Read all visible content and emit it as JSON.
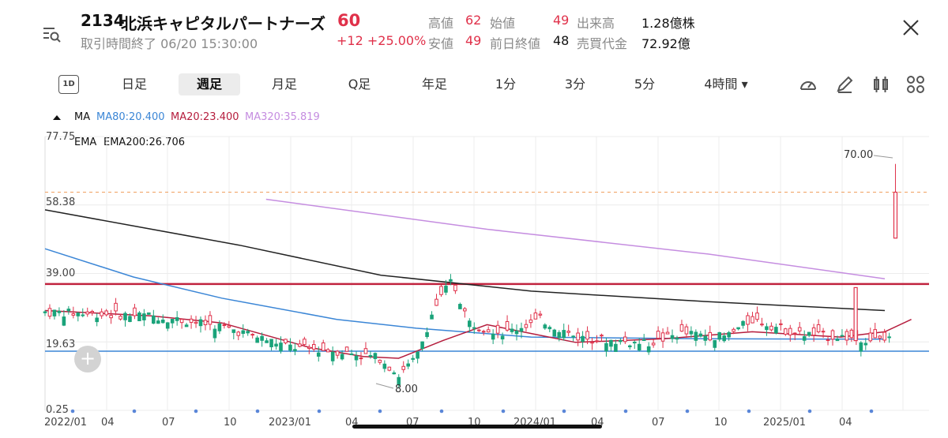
{
  "header": {
    "code": "2134",
    "name": "北浜キャピタルパートナーズ",
    "price": "60",
    "status": "取引時間終了 06/20 15:30:00",
    "change": "+12 +25.00%",
    "stats": [
      {
        "label": "高値",
        "value": "62",
        "color": "#e0314a"
      },
      {
        "label": "始値",
        "value": "49",
        "color": "#e0314a"
      },
      {
        "label": "出来高",
        "value": "1.28億株",
        "color": "#111111"
      },
      {
        "label": "安値",
        "value": "49",
        "color": "#e0314a"
      },
      {
        "label": "前日終値",
        "value": "48",
        "color": "#111111"
      },
      {
        "label": "売買代金",
        "value": "72.92億",
        "color": "#111111"
      }
    ]
  },
  "tabs": [
    {
      "label": "日足"
    },
    {
      "label": "週足",
      "active": true
    },
    {
      "label": "月足"
    },
    {
      "label": "Q足"
    },
    {
      "label": "年足"
    },
    {
      "label": "1分"
    },
    {
      "label": "3分"
    },
    {
      "label": "5分"
    },
    {
      "label": "4時間 ▾"
    }
  ],
  "tab_1d_label": "1D",
  "legend": {
    "ma_label": "MA",
    "ma80": "MA80:20.400",
    "ma20": "MA20:23.400",
    "ma320": "MA320:35.819",
    "ema": "EMA",
    "ema200": "EMA200:26.706"
  },
  "colors": {
    "up": "#e0314a",
    "down": "#1aa37a",
    "ma80": "#3b86d6",
    "ma20": "#b51d3d",
    "ma320": "#c58de0",
    "ema200": "#222222",
    "resistance": "#c0233e",
    "support": "#3b86d6",
    "dashed": "#f0a060"
  },
  "chart_data": {
    "type": "candlestick",
    "title": "",
    "y_ticks": [
      "77.75",
      "58.38",
      "39.00",
      "19.63",
      "0.25"
    ],
    "ylim": [
      0.25,
      77.75
    ],
    "x_ticks": [
      "2022/01",
      "04",
      "07",
      "10",
      "2023/01",
      "04",
      "07",
      "10",
      "2024/01",
      "04",
      "07",
      "10",
      "2025/01",
      "04"
    ],
    "annotations": {
      "high": "70.00",
      "low": "8.00"
    },
    "horizontal_lines": {
      "resistance": 36.0,
      "support": 17.0,
      "dashed_high": 62.0
    },
    "series": [
      {
        "name": "MA320",
        "points": [
          [
            0.25,
            60.0
          ],
          [
            0.5,
            51.5
          ],
          [
            0.75,
            44.5
          ],
          [
            0.95,
            37.5
          ]
        ]
      },
      {
        "name": "EMA200",
        "points": [
          [
            0.0,
            57.0
          ],
          [
            0.22,
            47.0
          ],
          [
            0.38,
            38.5
          ],
          [
            0.55,
            34.0
          ],
          [
            0.75,
            31.0
          ],
          [
            0.95,
            28.5
          ]
        ]
      },
      {
        "name": "MA80",
        "points": [
          [
            0.0,
            46.0
          ],
          [
            0.1,
            38.0
          ],
          [
            0.2,
            32.0
          ],
          [
            0.33,
            26.0
          ],
          [
            0.42,
            23.5
          ],
          [
            0.55,
            21.0
          ],
          [
            0.75,
            20.5
          ],
          [
            0.95,
            20.4
          ]
        ]
      },
      {
        "name": "MA20",
        "points": [
          [
            0.0,
            28.5
          ],
          [
            0.12,
            27.0
          ],
          [
            0.2,
            25.0
          ],
          [
            0.3,
            18.0
          ],
          [
            0.36,
            15.5
          ],
          [
            0.4,
            15.0
          ],
          [
            0.45,
            20.0
          ],
          [
            0.5,
            24.5
          ],
          [
            0.55,
            22.0
          ],
          [
            0.6,
            19.5
          ],
          [
            0.7,
            20.5
          ],
          [
            0.8,
            22.5
          ],
          [
            0.9,
            21.0
          ],
          [
            0.95,
            22.5
          ],
          [
            0.98,
            26.0
          ]
        ]
      }
    ]
  }
}
